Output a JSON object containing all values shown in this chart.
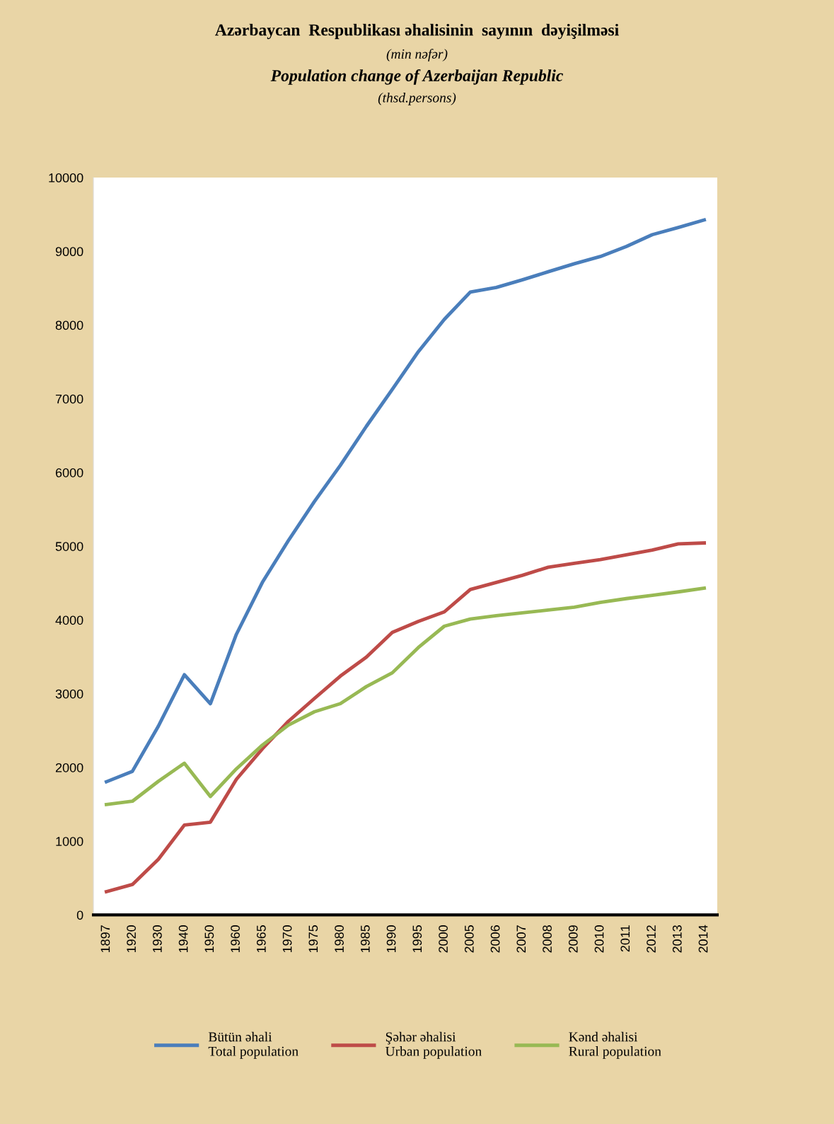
{
  "chart_data": {
    "type": "line",
    "title": "Azərbaycan  Respublikası əhalisinin  sayının  dəyişilməsi",
    "subtitle": [
      "(min nəfər)",
      "Population change of Azerbaijan Republic",
      "(thsd.persons)"
    ],
    "categories": [
      "1897",
      "1920",
      "1930",
      "1940",
      "1950",
      "1960",
      "1965",
      "1970",
      "1975",
      "1980",
      "1985",
      "1990",
      "1995",
      "2000",
      "2005",
      "2006",
      "2007",
      "2008",
      "2009",
      "2010",
      "2011",
      "2012",
      "2013",
      "2014"
    ],
    "series": [
      {
        "name": "Bütün əhali\nTotal population",
        "color": "#4a7ebb",
        "values": [
          1806,
          1948,
          2561,
          3258,
          2865,
          3806,
          4510,
          5077,
          5606,
          6097,
          6626,
          7129,
          7639,
          8077,
          8447,
          8510,
          8613,
          8723,
          8832,
          8929,
          9065,
          9226,
          9323,
          9426
        ]
      },
      {
        "name": "Şəhər əhalisi\nUrban population",
        "color": "#be4b48",
        "values": [
          316,
          413,
          755,
          1219,
          1258,
          1839,
          2252,
          2626,
          2935,
          3239,
          3497,
          3832,
          3981,
          4110,
          4413,
          4510,
          4606,
          4716,
          4768,
          4819,
          4884,
          4948,
          5032,
          5045
        ]
      },
      {
        "name": "Kənd əhalisi\nRural population",
        "color": "#98b954",
        "values": [
          1497,
          1542,
          1813,
          2058,
          1606,
          1981,
          2303,
          2574,
          2755,
          2865,
          3097,
          3284,
          3626,
          3916,
          4013,
          4058,
          4097,
          4135,
          4174,
          4239,
          4290,
          4335,
          4381,
          4432
        ]
      }
    ],
    "ylim": [
      0,
      10000
    ],
    "yticks": [
      0,
      1000,
      2000,
      3000,
      4000,
      5000,
      6000,
      7000,
      8000,
      9000,
      10000
    ],
    "grid": false,
    "legend": "bottom",
    "marker": "none",
    "line_style": "solid"
  }
}
